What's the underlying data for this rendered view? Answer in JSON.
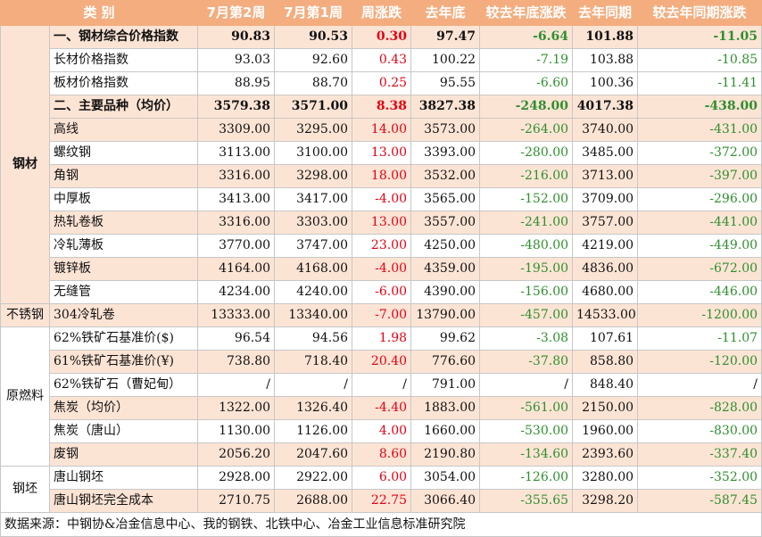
{
  "headers": [
    "类 别",
    "7月第2周",
    "7月第1周",
    "周涨跌",
    "去年底",
    "较去年底涨跌",
    "去年同期",
    "较去年同期涨跌"
  ],
  "groups": {
    "steel": "钢材",
    "stainless": "不锈钢",
    "raw": "原燃料",
    "billet": "钢坯"
  },
  "rows": [
    {
      "name": "一、钢材综合价格指数",
      "w2": "90.83",
      "w1": "90.53",
      "chg": "0.30",
      "eoy": "97.47",
      "vs_eoy": "-6.64",
      "ly": "101.88",
      "vs_ly": "-11.05"
    },
    {
      "name": "长材价格指数",
      "w2": "93.03",
      "w1": "92.60",
      "chg": "0.43",
      "eoy": "100.22",
      "vs_eoy": "-7.19",
      "ly": "103.88",
      "vs_ly": "-10.85"
    },
    {
      "name": "板材价格指数",
      "w2": "88.95",
      "w1": "88.70",
      "chg": "0.25",
      "eoy": "95.55",
      "vs_eoy": "-6.60",
      "ly": "100.36",
      "vs_ly": "-11.41"
    },
    {
      "name": "二、主要品种（均价）",
      "w2": "3579.38",
      "w1": "3571.00",
      "chg": "8.38",
      "eoy": "3827.38",
      "vs_eoy": "-248.00",
      "ly": "4017.38",
      "vs_ly": "-438.00"
    },
    {
      "name": "高线",
      "w2": "3309.00",
      "w1": "3295.00",
      "chg": "14.00",
      "eoy": "3573.00",
      "vs_eoy": "-264.00",
      "ly": "3740.00",
      "vs_ly": "-431.00"
    },
    {
      "name": "螺纹钢",
      "w2": "3113.00",
      "w1": "3100.00",
      "chg": "13.00",
      "eoy": "3393.00",
      "vs_eoy": "-280.00",
      "ly": "3485.00",
      "vs_ly": "-372.00"
    },
    {
      "name": "角钢",
      "w2": "3316.00",
      "w1": "3298.00",
      "chg": "18.00",
      "eoy": "3532.00",
      "vs_eoy": "-216.00",
      "ly": "3713.00",
      "vs_ly": "-397.00"
    },
    {
      "name": "中厚板",
      "w2": "3413.00",
      "w1": "3417.00",
      "chg": "-4.00",
      "eoy": "3565.00",
      "vs_eoy": "-152.00",
      "ly": "3709.00",
      "vs_ly": "-296.00"
    },
    {
      "name": "热轧卷板",
      "w2": "3316.00",
      "w1": "3303.00",
      "chg": "13.00",
      "eoy": "3557.00",
      "vs_eoy": "-241.00",
      "ly": "3757.00",
      "vs_ly": "-441.00"
    },
    {
      "name": "冷轧薄板",
      "w2": "3770.00",
      "w1": "3747.00",
      "chg": "23.00",
      "eoy": "4250.00",
      "vs_eoy": "-480.00",
      "ly": "4219.00",
      "vs_ly": "-449.00"
    },
    {
      "name": "镀锌板",
      "w2": "4164.00",
      "w1": "4168.00",
      "chg": "-4.00",
      "eoy": "4359.00",
      "vs_eoy": "-195.00",
      "ly": "4836.00",
      "vs_ly": "-672.00"
    },
    {
      "name": "无缝管",
      "w2": "4234.00",
      "w1": "4240.00",
      "chg": "-6.00",
      "eoy": "4390.00",
      "vs_eoy": "-156.00",
      "ly": "4680.00",
      "vs_ly": "-446.00"
    },
    {
      "name": "304冷轧卷",
      "w2": "13333.00",
      "w1": "13340.00",
      "chg": "-7.00",
      "eoy": "13790.00",
      "vs_eoy": "-457.00",
      "ly": "14533.00",
      "vs_ly": "-1200.00"
    },
    {
      "name": "62%铁矿石基准价($)",
      "w2": "96.54",
      "w1": "94.56",
      "chg": "1.98",
      "eoy": "99.62",
      "vs_eoy": "-3.08",
      "ly": "107.61",
      "vs_ly": "-11.07"
    },
    {
      "name": "61%铁矿石基准价(¥)",
      "w2": "738.80",
      "w1": "718.40",
      "chg": "20.40",
      "eoy": "776.60",
      "vs_eoy": "-37.80",
      "ly": "858.80",
      "vs_ly": "-120.00"
    },
    {
      "name": "62%铁矿石（曹妃甸）",
      "w2": "/",
      "w1": "/",
      "chg": "/",
      "eoy": "791.00",
      "vs_eoy": "/",
      "ly": "848.40",
      "vs_ly": "/"
    },
    {
      "name": "焦炭（均价）",
      "w2": "1322.00",
      "w1": "1326.40",
      "chg": "-4.40",
      "eoy": "1883.00",
      "vs_eoy": "-561.00",
      "ly": "2150.00",
      "vs_ly": "-828.00"
    },
    {
      "name": "焦炭（唐山）",
      "w2": "1130.00",
      "w1": "1126.00",
      "chg": "4.00",
      "eoy": "1660.00",
      "vs_eoy": "-530.00",
      "ly": "1960.00",
      "vs_ly": "-830.00"
    },
    {
      "name": "废钢",
      "w2": "2056.20",
      "w1": "2047.60",
      "chg": "8.60",
      "eoy": "2190.80",
      "vs_eoy": "-134.60",
      "ly": "2393.60",
      "vs_ly": "-337.40"
    },
    {
      "name": "唐山钢坯",
      "w2": "2928.00",
      "w1": "2922.00",
      "chg": "6.00",
      "eoy": "3054.00",
      "vs_eoy": "-126.00",
      "ly": "3280.00",
      "vs_ly": "-352.00"
    },
    {
      "name": "唐山钢坯完全成本",
      "w2": "2710.75",
      "w1": "2688.00",
      "chg": "22.75",
      "eoy": "3066.40",
      "vs_eoy": "-355.65",
      "ly": "3298.20",
      "vs_ly": "-587.45"
    }
  ],
  "source": "数据来源：中钢协&冶金信息中心、我的钢铁、北铁中心、冶金工业信息标准研究院",
  "colors": {
    "header_bg": "#f4ad7f",
    "band_bg": "#fce4d5",
    "positive": "#e60012",
    "negative": "#2f8f2f"
  }
}
